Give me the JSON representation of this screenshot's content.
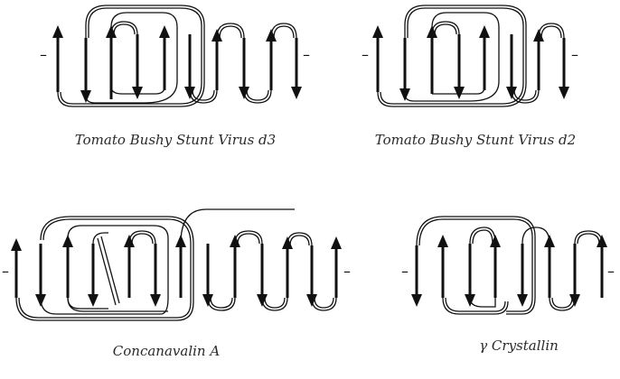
{
  "diagrams": [
    {
      "id": "tbsv-d3",
      "caption": "Tomato Bushy Stunt Virus d3",
      "terminal": "–"
    },
    {
      "id": "tbsv-d2",
      "caption": "Tomato Bushy Stunt Virus d2",
      "terminal": "–"
    },
    {
      "id": "con-a",
      "caption": "Concanavalin A",
      "terminal": "–"
    },
    {
      "id": "gamma-crystallin",
      "caption": "γ Crystallin",
      "terminal": "–"
    }
  ]
}
